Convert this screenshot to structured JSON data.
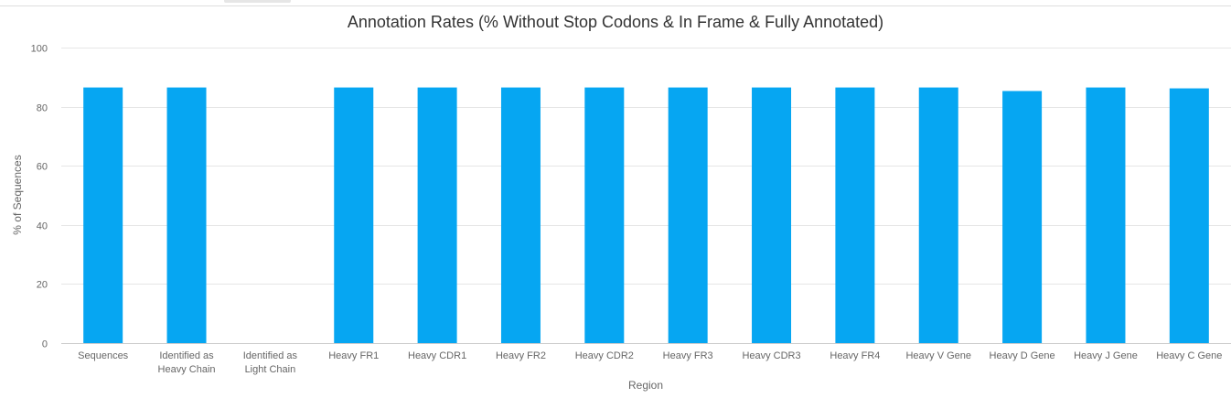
{
  "chart_data": {
    "type": "bar",
    "title": "Annotation Rates (% Without Stop Codons & In Frame & Fully Annotated)",
    "xlabel": "Region",
    "ylabel": "% of Sequences",
    "ylim": [
      0,
      100
    ],
    "yticks": [
      0,
      20,
      40,
      60,
      80,
      100
    ],
    "grid": true,
    "legend": "none",
    "color": "#06a6f2",
    "categories": [
      [
        "Sequences"
      ],
      [
        "Identified as",
        "Heavy Chain"
      ],
      [
        "Identified as",
        "Light Chain"
      ],
      [
        "Heavy FR1"
      ],
      [
        "Heavy CDR1"
      ],
      [
        "Heavy FR2"
      ],
      [
        "Heavy CDR2"
      ],
      [
        "Heavy FR3"
      ],
      [
        "Heavy CDR3"
      ],
      [
        "Heavy FR4"
      ],
      [
        "Heavy V Gene"
      ],
      [
        "Heavy D Gene"
      ],
      [
        "Heavy J Gene"
      ],
      [
        "Heavy C Gene"
      ]
    ],
    "values": [
      86.5,
      86.5,
      0,
      86.5,
      86.5,
      86.5,
      86.5,
      86.5,
      86.5,
      86.5,
      86.5,
      85.3,
      86.5,
      86.2
    ]
  }
}
